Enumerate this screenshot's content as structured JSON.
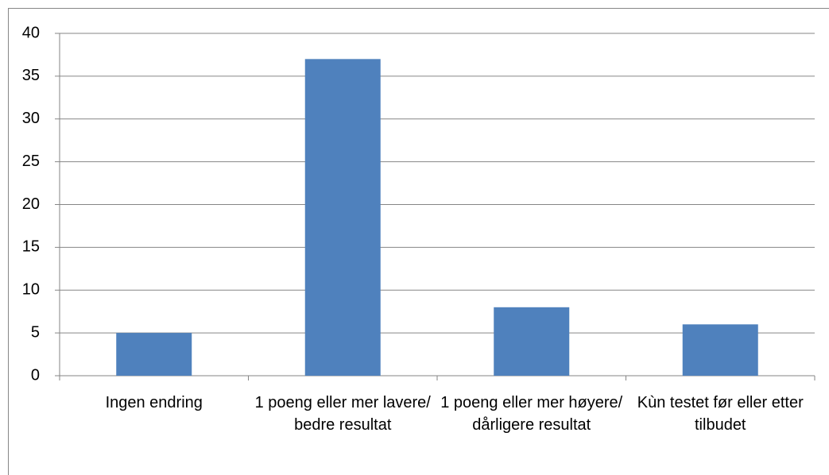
{
  "chart_data": {
    "type": "bar",
    "categories": [
      "Ingen endring",
      "1 poeng eller mer lavere/ bedre resultat",
      "1 poeng eller mer høyere/ dårligere resultat",
      "Kùn testet før eller etter tilbudet"
    ],
    "values": [
      5,
      37,
      8,
      6
    ],
    "color": "#4f81bd",
    "ylim": [
      0,
      40
    ],
    "yticks": [
      0,
      5,
      10,
      15,
      20,
      25,
      30,
      35,
      40
    ],
    "grid": true
  }
}
